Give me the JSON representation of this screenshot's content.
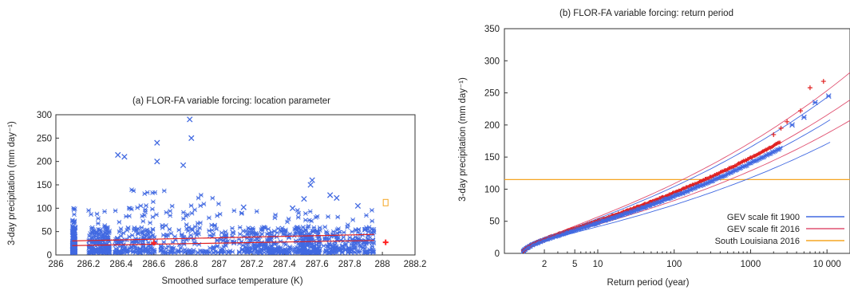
{
  "chart_data": [
    {
      "type": "scatter",
      "title": "(a) FLOR-FA variable forcing: location parameter",
      "xlabel": "Smoothed surface temperature (K)",
      "ylabel": "3-day precipitation (mm day⁻¹)",
      "xlim": [
        286,
        288.2
      ],
      "ylim": [
        0,
        300
      ],
      "xticks": [
        "286",
        "286.2",
        "286.4",
        "286.6",
        "286.8",
        "287",
        "287.2",
        "287.4",
        "287.6",
        "287.8",
        "288",
        "288.2"
      ],
      "xtick_values": [
        286,
        286.2,
        286.4,
        286.6,
        286.8,
        287,
        287.2,
        287.4,
        287.6,
        287.8,
        288,
        288.2
      ],
      "yticks": [
        "0",
        "50",
        "100",
        "150",
        "200",
        "250",
        "300"
      ],
      "ytick_values": [
        0,
        50,
        100,
        150,
        200,
        250,
        300
      ],
      "data_range_x": [
        286.1,
        287.95
      ],
      "lines": [
        {
          "x": [
            286.1,
            287.95
          ],
          "y": [
            30,
            44
          ]
        },
        {
          "x": [
            286.1,
            287.95
          ],
          "y": [
            20,
            31
          ]
        }
      ],
      "red_points": [
        [
          286.6,
          26
        ],
        [
          288.02,
          27
        ]
      ],
      "orange_points": [
        [
          288.02,
          112
        ]
      ],
      "outliers": [
        [
          286.82,
          290
        ],
        [
          286.83,
          250
        ],
        [
          286.78,
          192
        ],
        [
          286.38,
          214
        ],
        [
          286.42,
          210
        ],
        [
          286.62,
          240
        ],
        [
          286.62,
          200
        ],
        [
          287.57,
          160
        ],
        [
          287.56,
          150
        ],
        [
          287.52,
          120
        ],
        [
          287.68,
          128
        ],
        [
          287.72,
          122
        ],
        [
          287.15,
          102
        ],
        [
          287.45,
          100
        ],
        [
          287.85,
          105
        ]
      ],
      "colors": {
        "points": "#4169e1",
        "fit": "#e02020",
        "marker": "#ff2020",
        "orange": "#f5a623"
      }
    },
    {
      "type": "scatter",
      "title": "(b) FLOR-FA variable forcing: return period",
      "xlabel": "Return period (year)",
      "ylabel": "3-day precipitation (mm day⁻¹)",
      "xscale": "log",
      "xlim": [
        0.6,
        20000
      ],
      "ylim": [
        0,
        350
      ],
      "xticks": [
        "2",
        "5",
        "10",
        "100",
        "1000",
        "10 000"
      ],
      "xtick_values": [
        2,
        5,
        10,
        100,
        1000,
        10000
      ],
      "yticks": [
        "0",
        "50",
        "100",
        "150",
        "200",
        "250",
        "300",
        "350"
      ],
      "ytick_values": [
        0,
        50,
        100,
        150,
        200,
        250,
        300,
        350
      ],
      "hline": {
        "y": 115,
        "color": "#f5a623"
      },
      "gev_params": {
        "mu": 16,
        "sigma": 12.5,
        "xi": 0.1
      },
      "red_points": [
        [
          3000,
          205
        ],
        [
          4500,
          222
        ],
        [
          6000,
          258
        ],
        [
          9000,
          268
        ],
        [
          2500,
          195
        ],
        [
          2000,
          185
        ]
      ],
      "blue_points": [
        [
          5000,
          212
        ],
        [
          7000,
          235
        ],
        [
          10500,
          245
        ],
        [
          3500,
          200
        ]
      ],
      "fit_1900": [
        {
          "a": 1.0,
          "b": 1.0
        },
        {
          "a": 0.98,
          "b": 0.82
        },
        {
          "a": 1.02,
          "b": 1.2
        }
      ],
      "fit_2016": [
        {
          "a": 1.06,
          "b": 1.05
        },
        {
          "a": 1.04,
          "b": 0.9
        },
        {
          "a": 1.08,
          "b": 1.25
        }
      ],
      "legend": [
        {
          "label": "GEV scale fit 1900",
          "color": "#4169e1"
        },
        {
          "label": "GEV scale fit 2016",
          "color": "#e05070"
        },
        {
          "label": "South Louisiana 2016",
          "color": "#f5a623"
        }
      ],
      "legend_position": "bottom-right",
      "colors": {
        "blue": "#4169e1",
        "red": "#e02020"
      }
    }
  ]
}
